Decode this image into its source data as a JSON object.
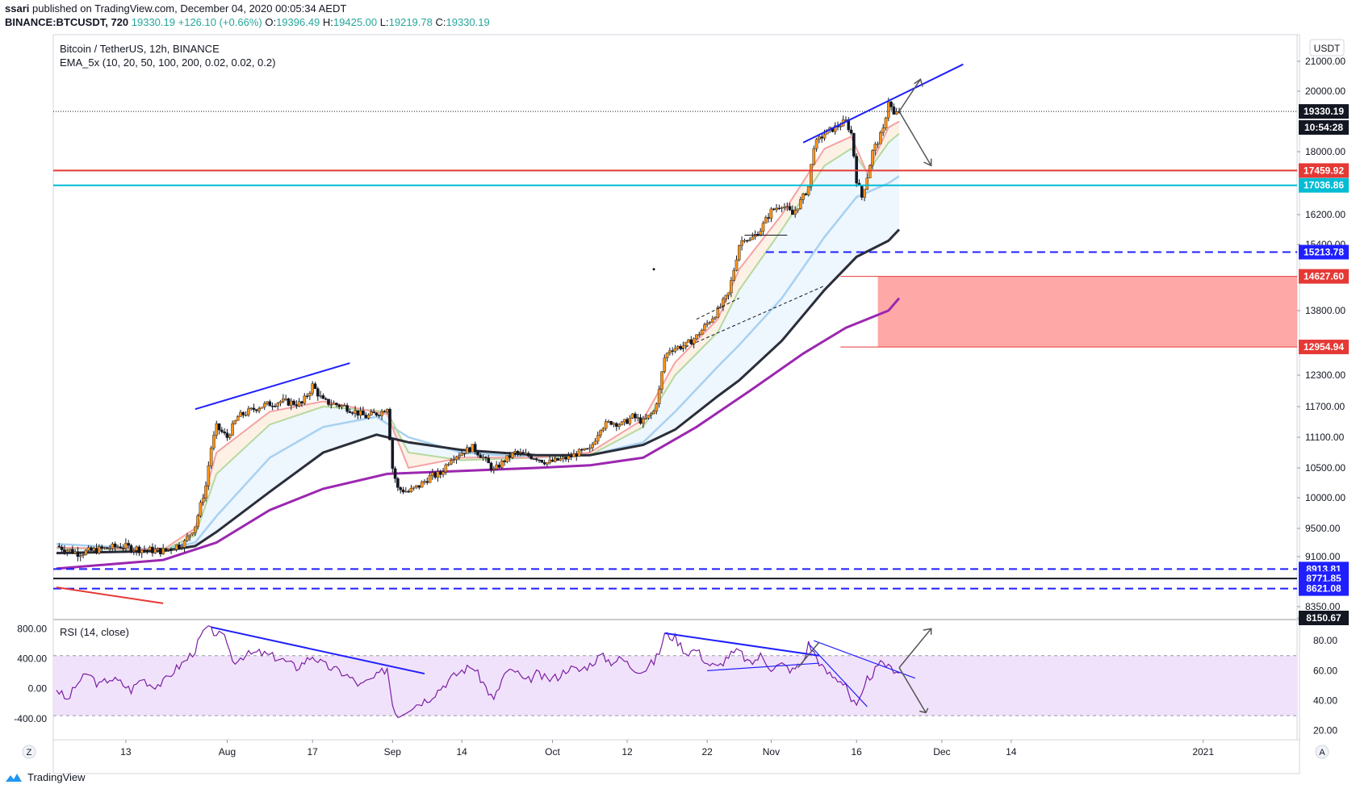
{
  "header": {
    "published_user": "ssari",
    "published_text": "published on TradingView.com, December 04, 2020 00:05:34 AEDT",
    "symbol": "BINANCE:BTCUSDT, 720",
    "last": "19330.19",
    "change": "+126.10 (+0.66%)",
    "o_label": "O:",
    "o_value": "19396.49",
    "h_label": "H:",
    "h_value": "19425.00",
    "l_label": "L:",
    "l_value": "19219.78",
    "c_label": "C:",
    "c_value": "19330.19"
  },
  "legend": {
    "title": "Bitcoin / TetherUS, 12h, BINANCE",
    "ema": "EMA_5x (10, 20, 50, 100, 200, 0.02, 0.02, 0.2)",
    "rsi": "RSI (14, close)"
  },
  "currency_badge": "USDT",
  "footer": {
    "brand": "TradingView"
  },
  "corner_left": "Z",
  "corner_right": "A",
  "colors": {
    "up": "#f7931a",
    "down": "#131722",
    "ema10": "#f5a3a3",
    "ema20": "#b5d99c",
    "ema50": "#a8d1f0",
    "ema100": "#2a2e39",
    "ema200": "#9c27b0",
    "resistance": "#e53935",
    "support": "#00bcd4",
    "blue_dash": "#1f1fff",
    "zone": "#ff9e9e",
    "rsi": "#7b1fa2",
    "rsi_band": "#f1e2fb"
  },
  "chart_data": {
    "type": "candlestick",
    "title": "Bitcoin / TetherUS, 12h, BINANCE",
    "price_axis": {
      "ylim": [
        8200,
        21500
      ],
      "ticks": [
        "21000.00",
        "20000.00",
        "18000.00",
        "16200.00",
        "15400.00",
        "13800.00",
        "12300.00",
        "11700.00",
        "11100.00",
        "10500.00",
        "10000.00",
        "9500.00",
        "9100.00",
        "8350.00",
        "8150.67"
      ],
      "ticks_numeric": [
        21000,
        20000,
        18000,
        16200,
        15400,
        13800,
        12300,
        11700,
        11100,
        10500,
        10000,
        9500,
        9100,
        8350,
        8150.67
      ]
    },
    "time_axis": {
      "labels": [
        "13",
        "Aug",
        "17",
        "Sep",
        "14",
        "Oct",
        "12",
        "22",
        "Nov",
        "16",
        "Dec",
        "14",
        "2021"
      ],
      "label_x_days": [
        13,
        32,
        48,
        63,
        76,
        93,
        107,
        122,
        134,
        150,
        166,
        179,
        215
      ]
    },
    "price_labels": [
      {
        "text": "19330.19",
        "value": 19330.19,
        "bg": "#131722"
      },
      {
        "text": "10:54:28",
        "value": 18800,
        "bg": "#131722"
      },
      {
        "text": "17459.92",
        "value": 17459.92,
        "bg": "#e53935"
      },
      {
        "text": "17036.86",
        "value": 17036.86,
        "bg": "#00bcd4"
      },
      {
        "text": "15213.78",
        "value": 15213.78,
        "bg": "#1f1fff"
      },
      {
        "text": "14627.60",
        "value": 14627.6,
        "bg": "#e53935"
      },
      {
        "text": "12954.94",
        "value": 12954.94,
        "bg": "#e53935"
      },
      {
        "text": "8913.81",
        "value": 8913.81,
        "bg": "#1f1fff"
      },
      {
        "text": "8771.85",
        "value": 8771.85,
        "bg": "#1f1fff"
      },
      {
        "text": "8621.08",
        "value": 8621.08,
        "bg": "#1f1fff"
      },
      {
        "text": "8150.67",
        "value": 8150.67,
        "bg": "#131722"
      }
    ],
    "series_close": [
      [
        0,
        9250
      ],
      [
        4,
        9150
      ],
      [
        8,
        9200
      ],
      [
        12,
        9250
      ],
      [
        16,
        9200
      ],
      [
        20,
        9180
      ],
      [
        24,
        9300
      ],
      [
        26,
        9550
      ],
      [
        28,
        10200
      ],
      [
        29,
        10900
      ],
      [
        30,
        11300
      ],
      [
        32,
        11100
      ],
      [
        34,
        11500
      ],
      [
        38,
        11700
      ],
      [
        42,
        11800
      ],
      [
        46,
        11750
      ],
      [
        48,
        12100
      ],
      [
        50,
        11800
      ],
      [
        54,
        11700
      ],
      [
        58,
        11500
      ],
      [
        61,
        11600
      ],
      [
        62,
        11700
      ],
      [
        63,
        10500
      ],
      [
        64,
        10150
      ],
      [
        66,
        10100
      ],
      [
        68,
        10200
      ],
      [
        70,
        10350
      ],
      [
        72,
        10400
      ],
      [
        74,
        10700
      ],
      [
        76,
        10800
      ],
      [
        78,
        10900
      ],
      [
        80,
        10700
      ],
      [
        82,
        10450
      ],
      [
        84,
        10650
      ],
      [
        86,
        10800
      ],
      [
        88,
        10750
      ],
      [
        90,
        10700
      ],
      [
        92,
        10600
      ],
      [
        94,
        10650
      ],
      [
        96,
        10700
      ],
      [
        98,
        10800
      ],
      [
        100,
        10850
      ],
      [
        102,
        11300
      ],
      [
        104,
        11400
      ],
      [
        106,
        11350
      ],
      [
        108,
        11500
      ],
      [
        110,
        11400
      ],
      [
        112,
        11600
      ],
      [
        113,
        12000
      ],
      [
        114,
        12700
      ],
      [
        115,
        12900
      ],
      [
        118,
        13000
      ],
      [
        120,
        13200
      ],
      [
        122,
        13500
      ],
      [
        124,
        13800
      ],
      [
        126,
        14200
      ],
      [
        128,
        15400
      ],
      [
        129,
        15600
      ],
      [
        130,
        15500
      ],
      [
        132,
        15800
      ],
      [
        134,
        16300
      ],
      [
        136,
        16500
      ],
      [
        138,
        16200
      ],
      [
        140,
        16700
      ],
      [
        141,
        17000
      ],
      [
        142,
        18200
      ],
      [
        144,
        18600
      ],
      [
        146,
        18800
      ],
      [
        148,
        19000
      ],
      [
        149,
        18600
      ],
      [
        150,
        17200
      ],
      [
        151,
        16700
      ],
      [
        152,
        17300
      ],
      [
        153,
        18000
      ],
      [
        155,
        18700
      ],
      [
        156,
        19700
      ],
      [
        157,
        19200
      ],
      [
        158,
        19330
      ]
    ],
    "ema": {
      "ema10": [
        [
          0,
          9230
        ],
        [
          20,
          9200
        ],
        [
          26,
          9500
        ],
        [
          30,
          10800
        ],
        [
          40,
          11600
        ],
        [
          50,
          11800
        ],
        [
          62,
          11550
        ],
        [
          66,
          10500
        ],
        [
          76,
          10700
        ],
        [
          90,
          10700
        ],
        [
          100,
          10800
        ],
        [
          110,
          11450
        ],
        [
          116,
          12600
        ],
        [
          124,
          13600
        ],
        [
          128,
          14800
        ],
        [
          136,
          16200
        ],
        [
          144,
          18100
        ],
        [
          149,
          18500
        ],
        [
          152,
          17400
        ],
        [
          156,
          18800
        ],
        [
          158,
          19000
        ]
      ],
      "ema20": [
        [
          0,
          9220
        ],
        [
          20,
          9190
        ],
        [
          26,
          9400
        ],
        [
          30,
          10400
        ],
        [
          40,
          11350
        ],
        [
          50,
          11700
        ],
        [
          62,
          11600
        ],
        [
          66,
          10800
        ],
        [
          76,
          10650
        ],
        [
          90,
          10700
        ],
        [
          100,
          10750
        ],
        [
          110,
          11300
        ],
        [
          116,
          12300
        ],
        [
          124,
          13300
        ],
        [
          128,
          14300
        ],
        [
          136,
          15800
        ],
        [
          144,
          17600
        ],
        [
          149,
          18100
        ],
        [
          152,
          17400
        ],
        [
          156,
          18300
        ],
        [
          158,
          18600
        ]
      ],
      "ema50": [
        [
          0,
          9280
        ],
        [
          20,
          9200
        ],
        [
          26,
          9300
        ],
        [
          30,
          9700
        ],
        [
          40,
          10700
        ],
        [
          50,
          11300
        ],
        [
          60,
          11500
        ],
        [
          66,
          11100
        ],
        [
          76,
          10800
        ],
        [
          90,
          10700
        ],
        [
          100,
          10750
        ],
        [
          110,
          11000
        ],
        [
          116,
          11600
        ],
        [
          124,
          12500
        ],
        [
          128,
          13000
        ],
        [
          136,
          14100
        ],
        [
          144,
          15600
        ],
        [
          150,
          16700
        ],
        [
          156,
          17100
        ],
        [
          158,
          17300
        ]
      ],
      "ema100": [
        [
          0,
          9150
        ],
        [
          20,
          9180
        ],
        [
          26,
          9250
        ],
        [
          30,
          9450
        ],
        [
          40,
          10100
        ],
        [
          50,
          10800
        ],
        [
          60,
          11150
        ],
        [
          66,
          11000
        ],
        [
          76,
          10850
        ],
        [
          90,
          10750
        ],
        [
          100,
          10750
        ],
        [
          110,
          10950
        ],
        [
          116,
          11250
        ],
        [
          124,
          11900
        ],
        [
          128,
          12200
        ],
        [
          136,
          13100
        ],
        [
          144,
          14300
        ],
        [
          150,
          15100
        ],
        [
          156,
          15500
        ],
        [
          158,
          15800
        ]
      ],
      "ema200": [
        [
          0,
          8920
        ],
        [
          20,
          9050
        ],
        [
          30,
          9300
        ],
        [
          40,
          9800
        ],
        [
          50,
          10150
        ],
        [
          62,
          10400
        ],
        [
          76,
          10450
        ],
        [
          90,
          10500
        ],
        [
          100,
          10550
        ],
        [
          110,
          10700
        ],
        [
          120,
          11300
        ],
        [
          130,
          12000
        ],
        [
          140,
          12800
        ],
        [
          148,
          13400
        ],
        [
          156,
          13800
        ],
        [
          158,
          14100
        ]
      ]
    },
    "annotations": {
      "horizontal_lines": [
        {
          "name": "resistance-line",
          "value": 17459.92,
          "color": "#e53935",
          "style": "solid"
        },
        {
          "name": "support-line",
          "value": 17036.86,
          "color": "#00bcd4",
          "style": "solid"
        },
        {
          "name": "dashed-15213",
          "value": 15213.78,
          "color": "#1f1fff",
          "style": "dashed"
        },
        {
          "name": "dashed-8913",
          "value": 8913.81,
          "color": "#1f1fff",
          "style": "dashed"
        },
        {
          "name": "black-8771",
          "value": 8771.85,
          "color": "#131722",
          "style": "solid"
        },
        {
          "name": "dashed-8621",
          "value": 8621.08,
          "color": "#1f1fff",
          "style": "dashed"
        }
      ],
      "zone": {
        "from": 12954.94,
        "to": 14627.6
      }
    },
    "rsi": {
      "axis_ticks": [
        "80.00",
        "60.00",
        "40.00",
        "20.00"
      ],
      "axis_ticks_numeric": [
        80,
        60,
        40,
        20
      ],
      "left_ticks": [
        "800.00",
        "400.00",
        "0.00",
        "-400.00"
      ],
      "band": [
        70,
        30
      ],
      "values": [
        [
          0,
          48
        ],
        [
          2,
          40
        ],
        [
          4,
          52
        ],
        [
          6,
          58
        ],
        [
          8,
          50
        ],
        [
          10,
          55
        ],
        [
          12,
          52
        ],
        [
          14,
          47
        ],
        [
          16,
          55
        ],
        [
          18,
          50
        ],
        [
          20,
          52
        ],
        [
          22,
          60
        ],
        [
          24,
          66
        ],
        [
          26,
          74
        ],
        [
          27,
          82
        ],
        [
          28,
          88
        ],
        [
          30,
          85
        ],
        [
          32,
          80
        ],
        [
          33,
          66
        ],
        [
          35,
          70
        ],
        [
          38,
          72
        ],
        [
          42,
          68
        ],
        [
          45,
          62
        ],
        [
          48,
          70
        ],
        [
          50,
          64
        ],
        [
          54,
          58
        ],
        [
          57,
          50
        ],
        [
          60,
          56
        ],
        [
          62,
          62
        ],
        [
          63,
          38
        ],
        [
          64,
          30
        ],
        [
          66,
          35
        ],
        [
          70,
          42
        ],
        [
          74,
          55
        ],
        [
          76,
          60
        ],
        [
          78,
          63
        ],
        [
          80,
          52
        ],
        [
          82,
          40
        ],
        [
          84,
          58
        ],
        [
          86,
          60
        ],
        [
          88,
          52
        ],
        [
          90,
          58
        ],
        [
          92,
          54
        ],
        [
          94,
          56
        ],
        [
          96,
          62
        ],
        [
          98,
          60
        ],
        [
          100,
          64
        ],
        [
          102,
          70
        ],
        [
          104,
          66
        ],
        [
          106,
          68
        ],
        [
          108,
          62
        ],
        [
          110,
          60
        ],
        [
          112,
          66
        ],
        [
          113,
          72
        ],
        [
          114,
          84
        ],
        [
          116,
          82
        ],
        [
          118,
          72
        ],
        [
          120,
          74
        ],
        [
          122,
          65
        ],
        [
          124,
          62
        ],
        [
          126,
          70
        ],
        [
          128,
          73
        ],
        [
          130,
          64
        ],
        [
          132,
          70
        ],
        [
          134,
          62
        ],
        [
          136,
          64
        ],
        [
          138,
          60
        ],
        [
          140,
          66
        ],
        [
          141,
          78
        ],
        [
          142,
          72
        ],
        [
          144,
          60
        ],
        [
          146,
          55
        ],
        [
          148,
          52
        ],
        [
          149,
          40
        ],
        [
          150,
          36
        ],
        [
          151,
          42
        ],
        [
          152,
          54
        ],
        [
          153,
          58
        ],
        [
          155,
          66
        ],
        [
          156,
          62
        ],
        [
          158,
          60
        ]
      ]
    }
  }
}
